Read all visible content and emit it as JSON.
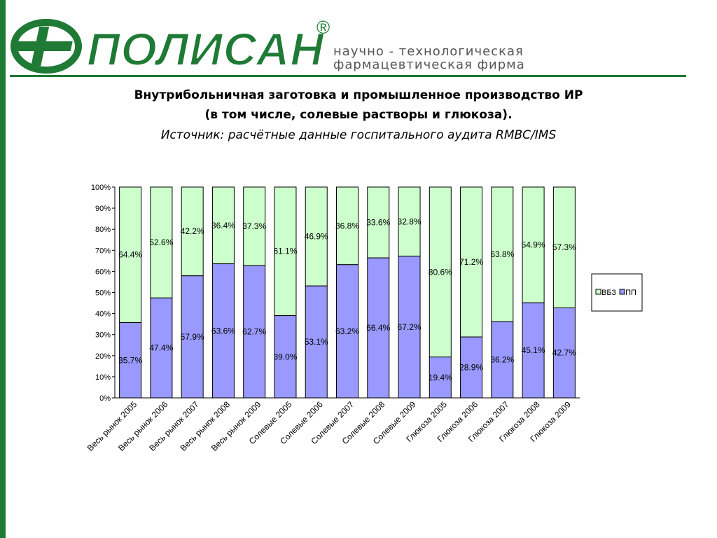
{
  "header": {
    "logo_text": "ПОЛИСАН",
    "registered_mark": "®",
    "tagline_line1": "научно - технологическая",
    "tagline_line2": "фармацевтическая фирма",
    "brand_color": "#1e7a35"
  },
  "title": {
    "line1": "Внутрибольничная заготовка и промышленное производство ИР",
    "line2": "(в том числе, солевые растворы и глюкоза).",
    "line3": "Источник: расчётные данные госпитального аудита RMBC/IMS"
  },
  "chart_data": {
    "type": "bar",
    "stacked": true,
    "percent_stacked": true,
    "categories": [
      "Весь рынок 2005",
      "Весь рынок 2006",
      "Весь рынок 2007",
      "Весь рынок 2008",
      "Весь рынок 2009",
      "Солевые 2005",
      "Солевые 2006",
      "Солевые 2007",
      "Солевые 2008",
      "Солевые 2009",
      "Глюкоза 2005",
      "Глюкоза 2006",
      "Глюкоза 2007",
      "Глюкоза 2008",
      "Глюкоза 2009"
    ],
    "series": [
      {
        "name": "ПП",
        "color": "#9999ff",
        "values": [
          35.7,
          47.4,
          57.9,
          63.6,
          62.7,
          39.0,
          53.1,
          63.2,
          66.4,
          67.2,
          19.4,
          28.9,
          36.2,
          45.1,
          42.7
        ],
        "labels": [
          "35.7%",
          "47.4%",
          "57.9%",
          "63.6%",
          "62.7%",
          "39.0%",
          "53.1%",
          "63.2%",
          "66.4%",
          "67.2%",
          "19.4%",
          "28.9%",
          "36.2%",
          "45.1%",
          "42.7%"
        ]
      },
      {
        "name": "ВБЗ",
        "color": "#ccffcc",
        "values": [
          64.4,
          52.6,
          42.2,
          36.4,
          37.3,
          61.1,
          46.9,
          36.8,
          33.6,
          32.8,
          80.6,
          71.2,
          63.8,
          54.9,
          57.3
        ],
        "labels": [
          "64.4%",
          "52.6%",
          "42.2%",
          "36.4%",
          "37.3%",
          "61.1%",
          "46.9%",
          "36.8%",
          "33.6%",
          "32.8%",
          "80.6%",
          "71.2%",
          "63.8%",
          "54.9%",
          "57.3%"
        ]
      }
    ],
    "yticks": [
      "0%",
      "10%",
      "20%",
      "30%",
      "40%",
      "50%",
      "60%",
      "70%",
      "80%",
      "90%",
      "100%"
    ],
    "ylim": [
      0,
      100
    ],
    "legend_order": [
      "ВБЗ",
      "ПП"
    ],
    "legend_position": "right",
    "grid": false
  }
}
